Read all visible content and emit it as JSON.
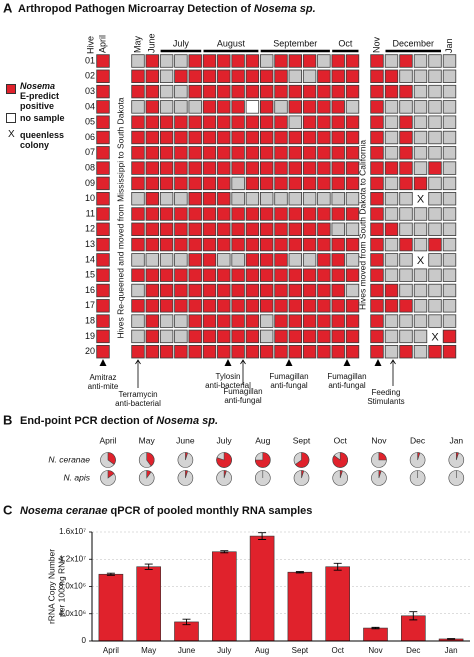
{
  "chart_data": [
    {
      "type": "heatmap",
      "label": "A",
      "title": "Arthropod Pathogen Microarray Detection of ",
      "title_italic": "Nosema sp.",
      "hive_header": "Hive",
      "months": [
        {
          "label": "April",
          "columns": 1
        },
        {
          "label": "May",
          "columns": 1
        },
        {
          "label": "June",
          "columns": 1
        },
        {
          "label": "July",
          "columns": 3
        },
        {
          "label": "August",
          "columns": 4
        },
        {
          "label": "September",
          "columns": 5
        },
        {
          "label": "Oct",
          "columns": 2
        },
        {
          "label": "Nov",
          "columns": 1
        },
        {
          "label": "December",
          "columns": 4
        },
        {
          "label": "Jan",
          "columns": 1
        }
      ],
      "hives": [
        "01",
        "02",
        "03",
        "04",
        "05",
        "06",
        "07",
        "08",
        "09",
        "10",
        "11",
        "12",
        "13",
        "14",
        "15",
        "16",
        "17",
        "18",
        "19",
        "20"
      ],
      "values": [
        [
          1,
          0,
          1,
          0,
          0,
          1,
          1,
          1,
          1,
          1,
          0,
          1,
          1,
          1,
          0,
          1,
          1,
          1,
          0,
          1,
          0,
          0,
          0
        ],
        [
          1,
          1,
          1,
          0,
          1,
          1,
          1,
          1,
          1,
          1,
          1,
          1,
          0,
          0,
          1,
          1,
          1,
          1,
          1,
          0,
          0,
          0,
          0
        ],
        [
          1,
          1,
          1,
          0,
          0,
          1,
          1,
          1,
          1,
          1,
          1,
          1,
          1,
          1,
          1,
          1,
          1,
          1,
          1,
          1,
          0,
          0,
          0
        ],
        [
          1,
          0,
          1,
          0,
          0,
          0,
          1,
          1,
          1,
          null,
          1,
          0,
          1,
          1,
          1,
          1,
          0,
          1,
          0,
          0,
          0,
          0,
          0
        ],
        [
          1,
          1,
          1,
          1,
          1,
          1,
          1,
          1,
          1,
          1,
          1,
          1,
          0,
          1,
          1,
          1,
          1,
          1,
          0,
          1,
          0,
          0,
          0
        ],
        [
          1,
          1,
          1,
          1,
          1,
          1,
          1,
          1,
          1,
          1,
          1,
          1,
          1,
          1,
          1,
          1,
          1,
          1,
          0,
          1,
          0,
          0,
          0
        ],
        [
          1,
          1,
          1,
          1,
          1,
          1,
          1,
          1,
          1,
          1,
          1,
          1,
          1,
          1,
          1,
          1,
          1,
          1,
          0,
          1,
          0,
          0,
          0
        ],
        [
          1,
          1,
          1,
          1,
          1,
          1,
          1,
          1,
          1,
          1,
          1,
          1,
          1,
          1,
          1,
          1,
          1,
          1,
          1,
          1,
          0,
          1,
          0
        ],
        [
          1,
          1,
          1,
          1,
          1,
          1,
          1,
          1,
          0,
          1,
          1,
          1,
          1,
          1,
          1,
          1,
          1,
          1,
          0,
          1,
          1,
          0,
          0
        ],
        [
          1,
          0,
          1,
          0,
          0,
          1,
          1,
          1,
          0,
          0,
          0,
          0,
          0,
          0,
          0,
          0,
          0,
          1,
          0,
          0,
          "X",
          0,
          0
        ],
        [
          1,
          1,
          1,
          1,
          1,
          1,
          1,
          1,
          1,
          1,
          1,
          1,
          1,
          1,
          1,
          1,
          1,
          1,
          0,
          0,
          0,
          0,
          0
        ],
        [
          1,
          1,
          1,
          1,
          1,
          1,
          1,
          1,
          1,
          1,
          1,
          1,
          1,
          1,
          1,
          0,
          0,
          1,
          1,
          0,
          0,
          0,
          0
        ],
        [
          1,
          1,
          1,
          1,
          1,
          1,
          1,
          1,
          1,
          1,
          1,
          1,
          1,
          1,
          1,
          1,
          1,
          1,
          0,
          1,
          0,
          1,
          0
        ],
        [
          1,
          0,
          0,
          0,
          0,
          1,
          1,
          0,
          0,
          1,
          1,
          1,
          0,
          0,
          1,
          1,
          0,
          1,
          0,
          0,
          "X",
          0,
          0
        ],
        [
          1,
          1,
          1,
          1,
          1,
          1,
          1,
          1,
          1,
          1,
          1,
          1,
          1,
          1,
          1,
          1,
          1,
          1,
          0,
          0,
          0,
          0,
          0
        ],
        [
          1,
          0,
          1,
          1,
          1,
          1,
          1,
          1,
          1,
          1,
          1,
          1,
          1,
          1,
          1,
          1,
          0,
          1,
          1,
          0,
          0,
          0,
          0
        ],
        [
          1,
          1,
          1,
          1,
          1,
          1,
          1,
          1,
          1,
          1,
          1,
          1,
          1,
          1,
          1,
          1,
          1,
          1,
          1,
          1,
          0,
          0,
          0
        ],
        [
          1,
          0,
          1,
          0,
          0,
          1,
          1,
          1,
          1,
          1,
          0,
          1,
          1,
          1,
          1,
          1,
          1,
          1,
          0,
          0,
          0,
          0,
          0
        ],
        [
          1,
          0,
          1,
          0,
          0,
          1,
          1,
          1,
          1,
          1,
          0,
          1,
          1,
          1,
          1,
          1,
          1,
          1,
          0,
          0,
          0,
          "X",
          1
        ],
        [
          1,
          1,
          1,
          1,
          1,
          1,
          1,
          1,
          1,
          1,
          1,
          1,
          1,
          1,
          1,
          1,
          1,
          1,
          0,
          1,
          0,
          1,
          1
        ]
      ],
      "positive_color": "#e0222c",
      "negative_color": "#c9c9c9",
      "no_sample_color": "#ffffff",
      "legend": {
        "positive_italic": "Nosema",
        "positive": "E-predict positive",
        "no_sample": "no sample",
        "queenless_mark": "X",
        "queenless": "queenless colony"
      },
      "notes": [
        "Hives Re-queened and moved from Mississippi to South Dakota",
        "Hives moved from South Dakota to California"
      ],
      "treatments": [
        [
          "Amitraz",
          "anti-mite"
        ],
        [
          "Terramycin",
          "anti-bacterial"
        ],
        [
          "Tylosin",
          "anti-bacterial"
        ],
        [
          "Fumagillan",
          "anti-fungal"
        ],
        [
          "Fumagillan",
          "anti-fungal"
        ],
        [
          "Fumagillan",
          "anti-fungal"
        ],
        [
          "Feeding",
          "Stimulants"
        ]
      ]
    },
    {
      "type": "pie",
      "label": "B",
      "title": "End-point PCR dection of ",
      "title_italic": "Nosema sp.",
      "categories": [
        "April",
        "May",
        "June",
        "July",
        "Aug",
        "Sept",
        "Oct",
        "Nov",
        "Dec",
        "Jan"
      ],
      "series": [
        {
          "name": "N. ceranae",
          "color": "#e0222c",
          "values": [
            35,
            40,
            5,
            80,
            75,
            65,
            85,
            25,
            5,
            5
          ]
        },
        {
          "name": "N. apis",
          "color": "#e0222c",
          "values": [
            15,
            10,
            5,
            5,
            0,
            5,
            5,
            5,
            0,
            0
          ]
        }
      ],
      "rest_color": "#d4d4d4"
    },
    {
      "type": "bar",
      "label": "C",
      "title_italic": "Nosema ceranae",
      "title": " qPCR of pooled monthly RNA samples",
      "ylabel": [
        "rRNA Copy Number",
        "per 100 ng RNA"
      ],
      "categories": [
        "April",
        "May",
        "June",
        "July",
        "Aug",
        "Sept",
        "Oct",
        "Nov",
        "Dec",
        "Jan"
      ],
      "values": [
        9800000,
        10900000,
        2800000,
        13100000,
        15400000,
        10100000,
        10900000,
        1900000,
        3700000,
        300000
      ],
      "errors": [
        150000,
        400000,
        400000,
        150000,
        500000,
        100000,
        500000,
        100000,
        600000,
        50000
      ],
      "color": "#e0222c",
      "ylim": [
        0,
        16000000
      ],
      "yticks": [
        0,
        {
          "value": 4000000,
          "label": "4.0x10⁶"
        },
        {
          "value": 8000000,
          "label": "8.0x10⁶"
        },
        {
          "value": 12000000,
          "label": "1.2x10⁷"
        },
        {
          "value": 16000000,
          "label": "1.6x10⁷"
        }
      ],
      "grid": true
    }
  ]
}
